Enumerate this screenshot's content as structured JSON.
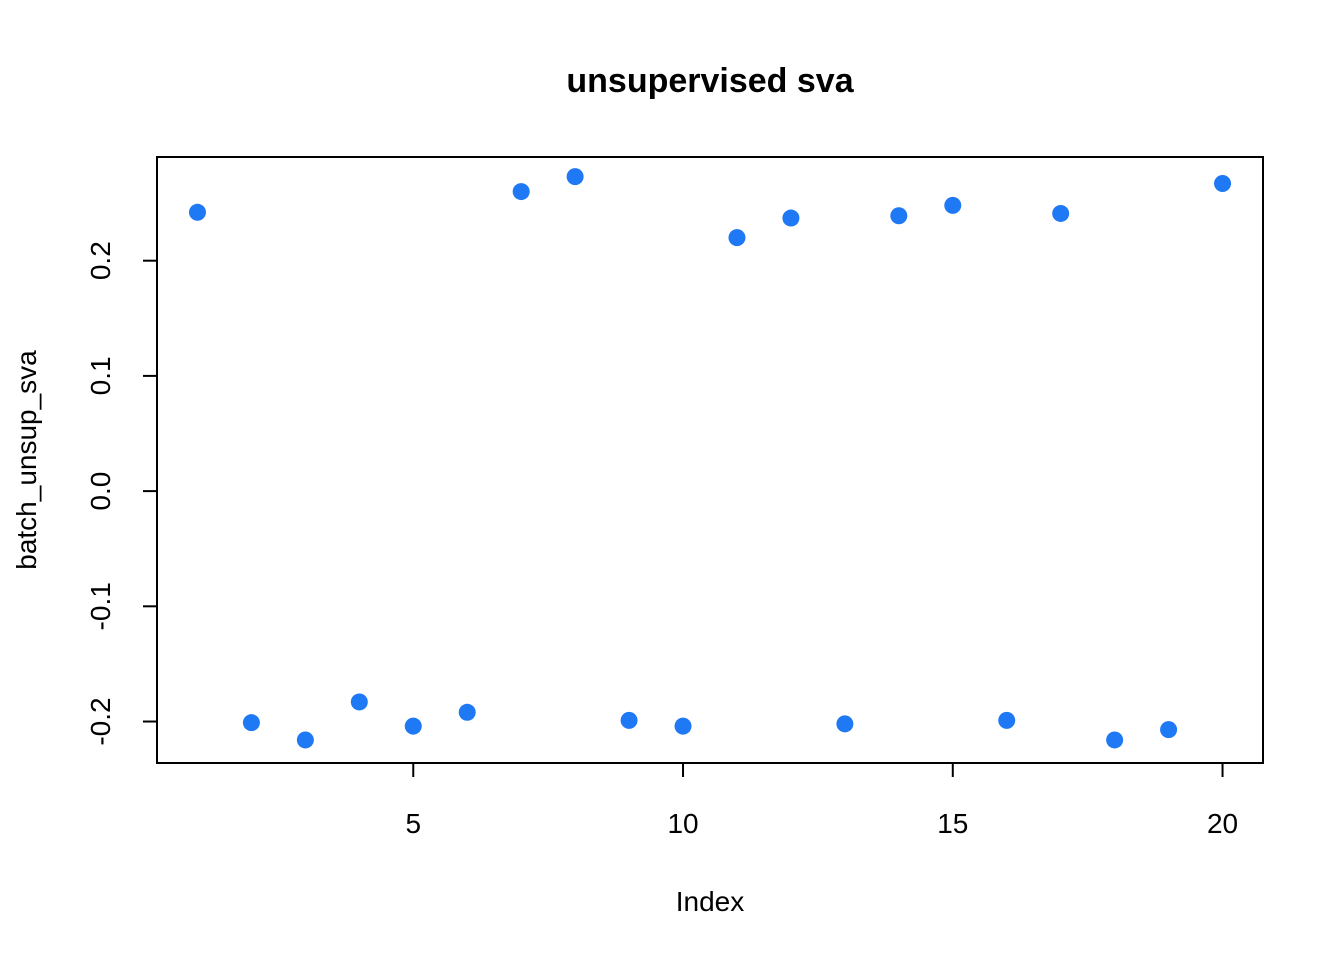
{
  "chart_data": {
    "type": "scatter",
    "title": "unsupervised sva",
    "xlabel": "Index",
    "ylabel": "batch_unsup_sva",
    "xlim": [
      0.25,
      20.75
    ],
    "ylim": [
      -0.236,
      0.29
    ],
    "xticks": [
      5,
      10,
      15,
      20
    ],
    "xtick_labels": [
      "5",
      "10",
      "15",
      "20"
    ],
    "yticks": [
      -0.2,
      -0.1,
      0.0,
      0.1,
      0.2
    ],
    "ytick_labels": [
      "-0.2",
      "-0.1",
      "0.0",
      "0.1",
      "0.2"
    ],
    "grid": false,
    "point_color": "#1f78f4",
    "x": [
      1,
      2,
      3,
      4,
      5,
      6,
      7,
      8,
      9,
      10,
      11,
      12,
      13,
      14,
      15,
      16,
      17,
      18,
      19,
      20
    ],
    "y": [
      0.242,
      -0.201,
      -0.216,
      -0.183,
      -0.204,
      -0.192,
      0.26,
      0.273,
      -0.199,
      -0.204,
      0.22,
      0.237,
      -0.202,
      0.239,
      0.248,
      -0.199,
      0.241,
      -0.216,
      -0.207,
      0.267
    ]
  }
}
